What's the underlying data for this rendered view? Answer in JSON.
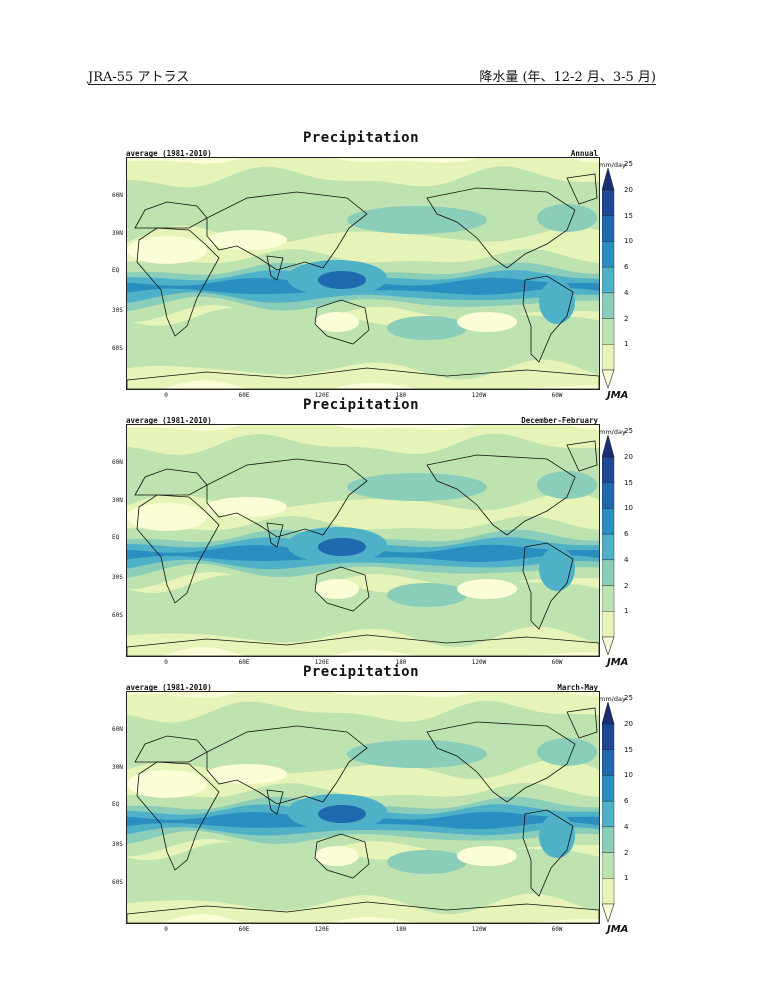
{
  "header": {
    "left": "JRA-55 アトラス",
    "right": "降水量 (年、12-2 月、3-5 月)"
  },
  "colors": {
    "levels": [
      "#fafdd6",
      "#e6f4b8",
      "#bfe3b0",
      "#8acdb9",
      "#4fb1c7",
      "#2a8fc0",
      "#1f6aae",
      "#1d4897",
      "#172f74"
    ],
    "coast": "#111111"
  },
  "colorbar": {
    "unit": "mm/day",
    "ticks": [
      "1",
      "2",
      "4",
      "6",
      "10",
      "15",
      "20",
      "25"
    ]
  },
  "axes": {
    "lat_labels": [
      "60N",
      "30N",
      "EQ",
      "30S",
      "60S"
    ],
    "lon_labels": [
      "0",
      "60E",
      "120E",
      "180",
      "120W",
      "60W"
    ]
  },
  "panels": [
    {
      "title": "Precipitation",
      "period_label": "average (1981-2010)",
      "season": "Annual",
      "logo": "JMA"
    },
    {
      "title": "Precipitation",
      "period_label": "average (1981-2010)",
      "season": "December-February",
      "logo": "JMA"
    },
    {
      "title": "Precipitation",
      "period_label": "average (1981-2010)",
      "season": "March-May",
      "logo": "JMA"
    }
  ]
}
